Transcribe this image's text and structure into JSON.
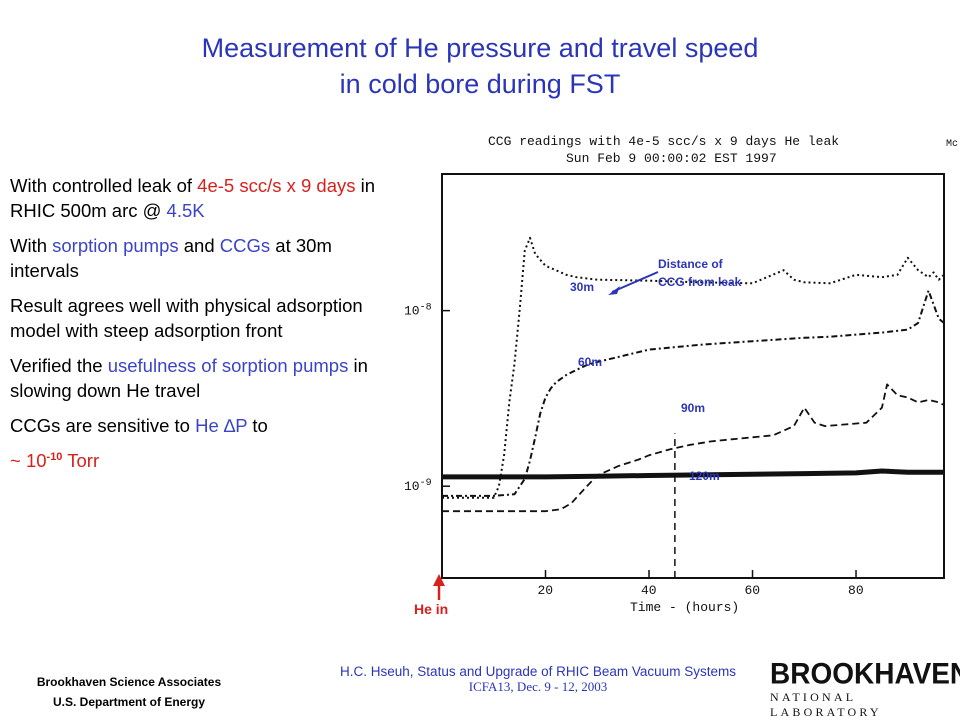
{
  "title": {
    "line1": "Measurement of He pressure and travel speed",
    "line2": "in cold bore during FST"
  },
  "bullets": {
    "b1": {
      "a": "With controlled leak of ",
      "b": "4e-5 scc/s x 9 days",
      "c": " in RHIC 500m arc @ ",
      "d": "4.5K"
    },
    "b2": {
      "a": "With ",
      "b": "sorption pumps",
      "c": " and ",
      "d": "CCGs",
      "e": " at 30m intervals"
    },
    "b3": "Result agrees well with physical adsorption model with steep adsorption front",
    "b4": {
      "a": "Verified the ",
      "b": "usefulness of sorption pumps",
      "c": " in slowing down He travel"
    },
    "b5": {
      "a": "CCGs are sensitive  to ",
      "b": "He ",
      "delta": "∆",
      "c": "P",
      "d": " to"
    },
    "b6": {
      "a": "~ 10",
      "exp": "-10",
      "b": " Torr"
    }
  },
  "chart_data": {
    "type": "line",
    "title": "CCG readings with 4e-5 scc/s x 9 days He leak",
    "subtitle": "Sun Feb 9 00:00:02 EST 1997",
    "corner_text": "Mc",
    "xlabel": "Time - (hours)",
    "ylabel": "",
    "x_ticks": [
      "20",
      "40",
      "60",
      "80"
    ],
    "y_ticks": [
      "10^-8",
      "10^-9"
    ],
    "y_scale": "log",
    "xlim": [
      0,
      97
    ],
    "ylim": [
      3e-10,
      6e-08
    ],
    "leak_off_hours": 45,
    "series": [
      {
        "name": "30m",
        "style": "dotted",
        "x": [
          0,
          10,
          11,
          12,
          13,
          14,
          15,
          16,
          17,
          18,
          20,
          22,
          24,
          26,
          30,
          40,
          50,
          60,
          66,
          68,
          70,
          75,
          80,
          85,
          88,
          90,
          92,
          94,
          95,
          96,
          97
        ],
        "y": [
          8.6e-10,
          8.6e-10,
          1e-09,
          1.5e-09,
          3e-09,
          5e-09,
          1e-08,
          2.2e-08,
          2.6e-08,
          2.1e-08,
          1.8e-08,
          1.7e-08,
          1.6e-08,
          1.55e-08,
          1.5e-08,
          1.48e-08,
          1.45e-08,
          1.43e-08,
          1.7e-08,
          1.5e-08,
          1.45e-08,
          1.43e-08,
          1.6e-08,
          1.55e-08,
          1.6e-08,
          2e-08,
          1.7e-08,
          1.55e-08,
          1.65e-08,
          1.5e-08,
          1.6e-08
        ]
      },
      {
        "name": "60m",
        "style": "dash-dot",
        "x": [
          0,
          10,
          14,
          16,
          17,
          18,
          19,
          20,
          21,
          22,
          24,
          26,
          28,
          30,
          40,
          50,
          60,
          70,
          75,
          80,
          85,
          90,
          92,
          94,
          96,
          97
        ],
        "y": [
          8.8e-10,
          8.8e-10,
          9e-10,
          1.1e-09,
          1.4e-09,
          1.9e-09,
          2.6e-09,
          3.2e-09,
          3.6e-09,
          3.9e-09,
          4.3e-09,
          4.6e-09,
          4.9e-09,
          5.1e-09,
          6e-09,
          6.4e-09,
          6.7e-09,
          7e-09,
          7.1e-09,
          7.3e-09,
          7.5e-09,
          7.8e-09,
          8.5e-09,
          1.3e-08,
          9e-09,
          8.5e-09
        ]
      },
      {
        "name": "90m",
        "style": "dashed",
        "x": [
          0,
          20,
          23,
          25,
          28,
          30,
          34,
          38,
          40,
          44,
          48,
          52,
          56,
          60,
          64,
          68,
          70,
          72,
          74,
          78,
          82,
          85,
          86,
          88,
          90,
          92,
          94,
          96,
          97
        ],
        "y": [
          7.2e-10,
          7.2e-10,
          7.4e-10,
          8e-10,
          1e-09,
          1.15e-09,
          1.3e-09,
          1.42e-09,
          1.5e-09,
          1.62e-09,
          1.72e-09,
          1.8e-09,
          1.85e-09,
          1.9e-09,
          1.95e-09,
          2.2e-09,
          2.8e-09,
          2.3e-09,
          2.2e-09,
          2.25e-09,
          2.3e-09,
          2.8e-09,
          3.8e-09,
          3.3e-09,
          3.2e-09,
          3e-09,
          3.1e-09,
          3e-09,
          2.9e-09
        ]
      },
      {
        "name": "120m",
        "style": "solid-thick",
        "x": [
          0,
          20,
          30,
          40,
          50,
          60,
          70,
          80,
          85,
          90,
          97
        ],
        "y": [
          1.13e-09,
          1.13e-09,
          1.14e-09,
          1.15e-09,
          1.16e-09,
          1.17e-09,
          1.18e-09,
          1.19e-09,
          1.22e-09,
          1.2e-09,
          1.2e-09
        ]
      }
    ],
    "annotations": {
      "distance_label": "Distance of\nCCG from leak",
      "label_30m": "30m",
      "label_60m": "60m",
      "label_90m": "90m",
      "label_120m": "120m",
      "he_in": "He in"
    }
  },
  "footer": {
    "org1": "Brookhaven Science Associates",
    "org2": "U.S. Department of Energy",
    "talk": "H.C. Hseuh, Status and Upgrade of RHIC Beam Vacuum Systems",
    "conf": "ICFA13, Dec. 9 - 12, 2003",
    "logo_name": "BROOKHAVEN",
    "logo_sub": "NATIONAL LABORATORY"
  },
  "colors": {
    "title_blue": "#2b35b8",
    "accent_red": "#d8201c",
    "accent_blue": "#3b44c9"
  }
}
